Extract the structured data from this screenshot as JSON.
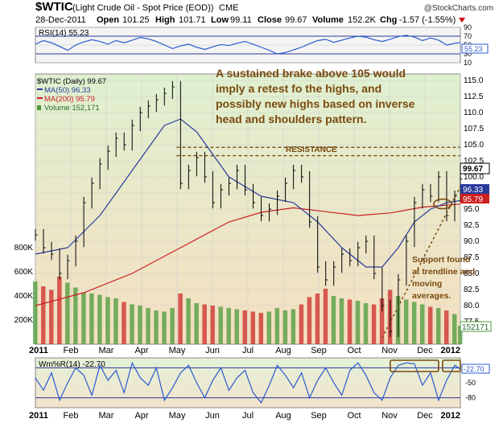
{
  "header": {
    "symbol": "$WTIC",
    "name": "(Light Crude Oil - Spot Price (EOD))",
    "exchange": "CME",
    "watermark": "@StockCharts.com",
    "date": "28-Dec-2011",
    "open_label": "Open",
    "open": "101.25",
    "high_label": "High",
    "high": "101.71",
    "low_label": "Low",
    "low": "99.11",
    "close_label": "Close",
    "close": "99.67",
    "volume_label": "Volume",
    "volume": "152.2K",
    "chg_label": "Chg",
    "chg": "-1.57 (-1.55%)"
  },
  "colors": {
    "price_bars": "#000000",
    "ma50": "#2a3a9a",
    "ma200": "#cc1f1f",
    "volume_up": "#4a9a3a",
    "volume_down": "#cc2a2a",
    "resistance": "#7a4a10",
    "annotation": "#7a4a10",
    "indicator_line": "#2a5ad0",
    "panel_bg_top": "#dff0d0",
    "panel_bg_bottom": "#f5dfc0"
  },
  "chart_data": [
    {
      "type": "line",
      "panel": "RSI",
      "label": "RSI(14)",
      "value_label": "55.23",
      "ylim": [
        10,
        90
      ],
      "yticks": [
        10,
        30,
        50,
        70,
        90
      ],
      "guides": [
        30,
        70
      ],
      "x": [
        0,
        10,
        20,
        30,
        40,
        50,
        60,
        70,
        80,
        90,
        100,
        110,
        120,
        130,
        140,
        150,
        160,
        170,
        180,
        190,
        200,
        210,
        220,
        230,
        240,
        250,
        260,
        270,
        280,
        290,
        300,
        310,
        320,
        330,
        340,
        350,
        360,
        370,
        380,
        390,
        400,
        410,
        420,
        430,
        440,
        450,
        460,
        470,
        480,
        490,
        500,
        510,
        520,
        527
      ],
      "values": [
        52,
        60,
        55,
        47,
        38,
        50,
        57,
        62,
        58,
        52,
        60,
        55,
        61,
        67,
        64,
        58,
        50,
        42,
        48,
        52,
        45,
        40,
        46,
        51,
        49,
        54,
        58,
        52,
        45,
        38,
        30,
        33,
        39,
        45,
        53,
        60,
        63,
        56,
        61,
        66,
        70,
        68,
        62,
        58,
        63,
        69,
        72,
        68,
        60,
        66,
        61,
        50,
        54,
        55.23
      ]
    },
    {
      "type": "line",
      "panel": "price",
      "label": "$WTIC (Daily)",
      "value_label": "99.67",
      "ylim": [
        74,
        116
      ],
      "yticks": [
        77.5,
        80.0,
        82.5,
        85.0,
        87.5,
        90.0,
        92.5,
        95.0,
        97.5,
        100.0,
        102.5,
        105.0,
        107.5,
        110.0,
        112.5,
        115.0
      ],
      "xticks": [
        "2011",
        "Feb",
        "Mar",
        "Apr",
        "May",
        "Jun",
        "Jul",
        "Aug",
        "Sep",
        "Oct",
        "Nov",
        "Dec",
        "2012"
      ],
      "series": [
        {
          "name": "$WTIC (Daily)",
          "x": [
            0,
            10,
            20,
            30,
            40,
            50,
            60,
            70,
            80,
            90,
            100,
            110,
            120,
            130,
            140,
            150,
            160,
            170,
            180,
            190,
            200,
            210,
            220,
            230,
            240,
            250,
            260,
            270,
            280,
            290,
            300,
            310,
            320,
            330,
            340,
            350,
            360,
            370,
            380,
            390,
            400,
            410,
            420,
            430,
            440,
            450,
            460,
            470,
            480,
            490,
            500,
            510,
            520,
            527
          ],
          "values": [
            91,
            89,
            88,
            85,
            87,
            90,
            96,
            99,
            102,
            104,
            106,
            105,
            108,
            110,
            111,
            112,
            113,
            114,
            99,
            101,
            103,
            100,
            96,
            98,
            99,
            101,
            98,
            96,
            94,
            95,
            97,
            99,
            101,
            100,
            93,
            86,
            84,
            86,
            88,
            87,
            89,
            90,
            85,
            80,
            76,
            84,
            90,
            96,
            98,
            97,
            100,
            94,
            97,
            99.67
          ]
        },
        {
          "name": "MA(50)",
          "value_label": "96.33",
          "x": [
            0,
            40,
            80,
            120,
            160,
            180,
            200,
            240,
            280,
            320,
            350,
            380,
            410,
            430,
            450,
            470,
            490,
            510,
            527
          ],
          "values": [
            88,
            89,
            94,
            101,
            108,
            109,
            107,
            100,
            97,
            96,
            93,
            89,
            86,
            86,
            89,
            93,
            95,
            96,
            96.33
          ]
        },
        {
          "name": "MA(200)",
          "value_label": "95.79",
          "x": [
            0,
            60,
            120,
            180,
            240,
            280,
            320,
            360,
            400,
            440,
            480,
            527
          ],
          "values": [
            80,
            82,
            85,
            89,
            93,
            94.5,
            95.2,
            94.6,
            94.0,
            94.4,
            95.3,
            95.79
          ]
        }
      ],
      "annotations": [
        {
          "text": "RESISTANCE",
          "y": 103.3
        },
        {
          "text": "A sustained brake above 105 would"
        },
        {
          "text": "imply a retest fo the highs, and"
        },
        {
          "text": "possibly new highs based on inverse"
        },
        {
          "text": "head and shoulders pattern."
        },
        {
          "text": "Support found"
        },
        {
          "text": "at trendline and"
        },
        {
          "text": "moving"
        },
        {
          "text": "averages."
        }
      ],
      "resistance_levels": [
        103.3,
        104.6
      ],
      "price_label_boxes": [
        "99.67",
        "96.33",
        "95.79"
      ]
    },
    {
      "type": "bar",
      "panel": "volume",
      "label": "Volume",
      "value_label": "152,171",
      "current_box": "152171",
      "ylim": [
        0,
        1000000
      ],
      "yticks": [
        "200K",
        "400K",
        "600K",
        "800K"
      ],
      "ytick_values": [
        200000,
        400000,
        600000,
        800000
      ],
      "x": [
        0,
        10,
        20,
        30,
        40,
        50,
        60,
        70,
        80,
        90,
        100,
        110,
        120,
        130,
        140,
        150,
        160,
        170,
        180,
        190,
        200,
        210,
        220,
        230,
        240,
        250,
        260,
        270,
        280,
        290,
        300,
        310,
        320,
        330,
        340,
        350,
        360,
        370,
        380,
        390,
        400,
        410,
        420,
        430,
        440,
        450,
        460,
        470,
        480,
        490,
        500,
        510,
        520,
        527
      ],
      "values": [
        520000,
        480000,
        450000,
        560000,
        510000,
        470000,
        430000,
        420000,
        410000,
        390000,
        380000,
        350000,
        330000,
        320000,
        300000,
        280000,
        270000,
        300000,
        420000,
        380000,
        340000,
        330000,
        320000,
        310000,
        300000,
        290000,
        280000,
        270000,
        260000,
        270000,
        300000,
        280000,
        290000,
        330000,
        390000,
        420000,
        460000,
        400000,
        380000,
        370000,
        360000,
        340000,
        330000,
        380000,
        450000,
        400000,
        370000,
        350000,
        330000,
        310000,
        300000,
        280000,
        250000,
        152171
      ]
    },
    {
      "type": "line",
      "panel": "Williams %R",
      "label": "Wm%R(14)",
      "value_label": "-22.70",
      "ylim": [
        -100,
        0
      ],
      "yticks": [
        -80,
        -50
      ],
      "guides": [
        -20,
        -80
      ],
      "x": [
        0,
        10,
        20,
        30,
        40,
        50,
        60,
        70,
        80,
        90,
        100,
        110,
        120,
        130,
        140,
        150,
        160,
        170,
        180,
        190,
        200,
        210,
        220,
        230,
        240,
        250,
        260,
        270,
        280,
        290,
        300,
        310,
        320,
        330,
        340,
        350,
        360,
        370,
        380,
        390,
        400,
        410,
        420,
        430,
        440,
        450,
        460,
        470,
        480,
        490,
        500,
        510,
        520,
        527
      ],
      "values": [
        -40,
        -65,
        -30,
        -85,
        -50,
        -20,
        -35,
        -75,
        -15,
        -45,
        -25,
        -70,
        -10,
        -40,
        -55,
        -20,
        -85,
        -60,
        -30,
        -15,
        -50,
        -80,
        -45,
        -20,
        -65,
        -40,
        -25,
        -70,
        -90,
        -55,
        -15,
        -35,
        -60,
        -30,
        -80,
        -45,
        -20,
        -50,
        -75,
        -25,
        -10,
        -35,
        -70,
        -85,
        -40,
        -15,
        -10,
        -12,
        -55,
        -30,
        -85,
        -45,
        -15,
        -22.7
      ]
    }
  ]
}
